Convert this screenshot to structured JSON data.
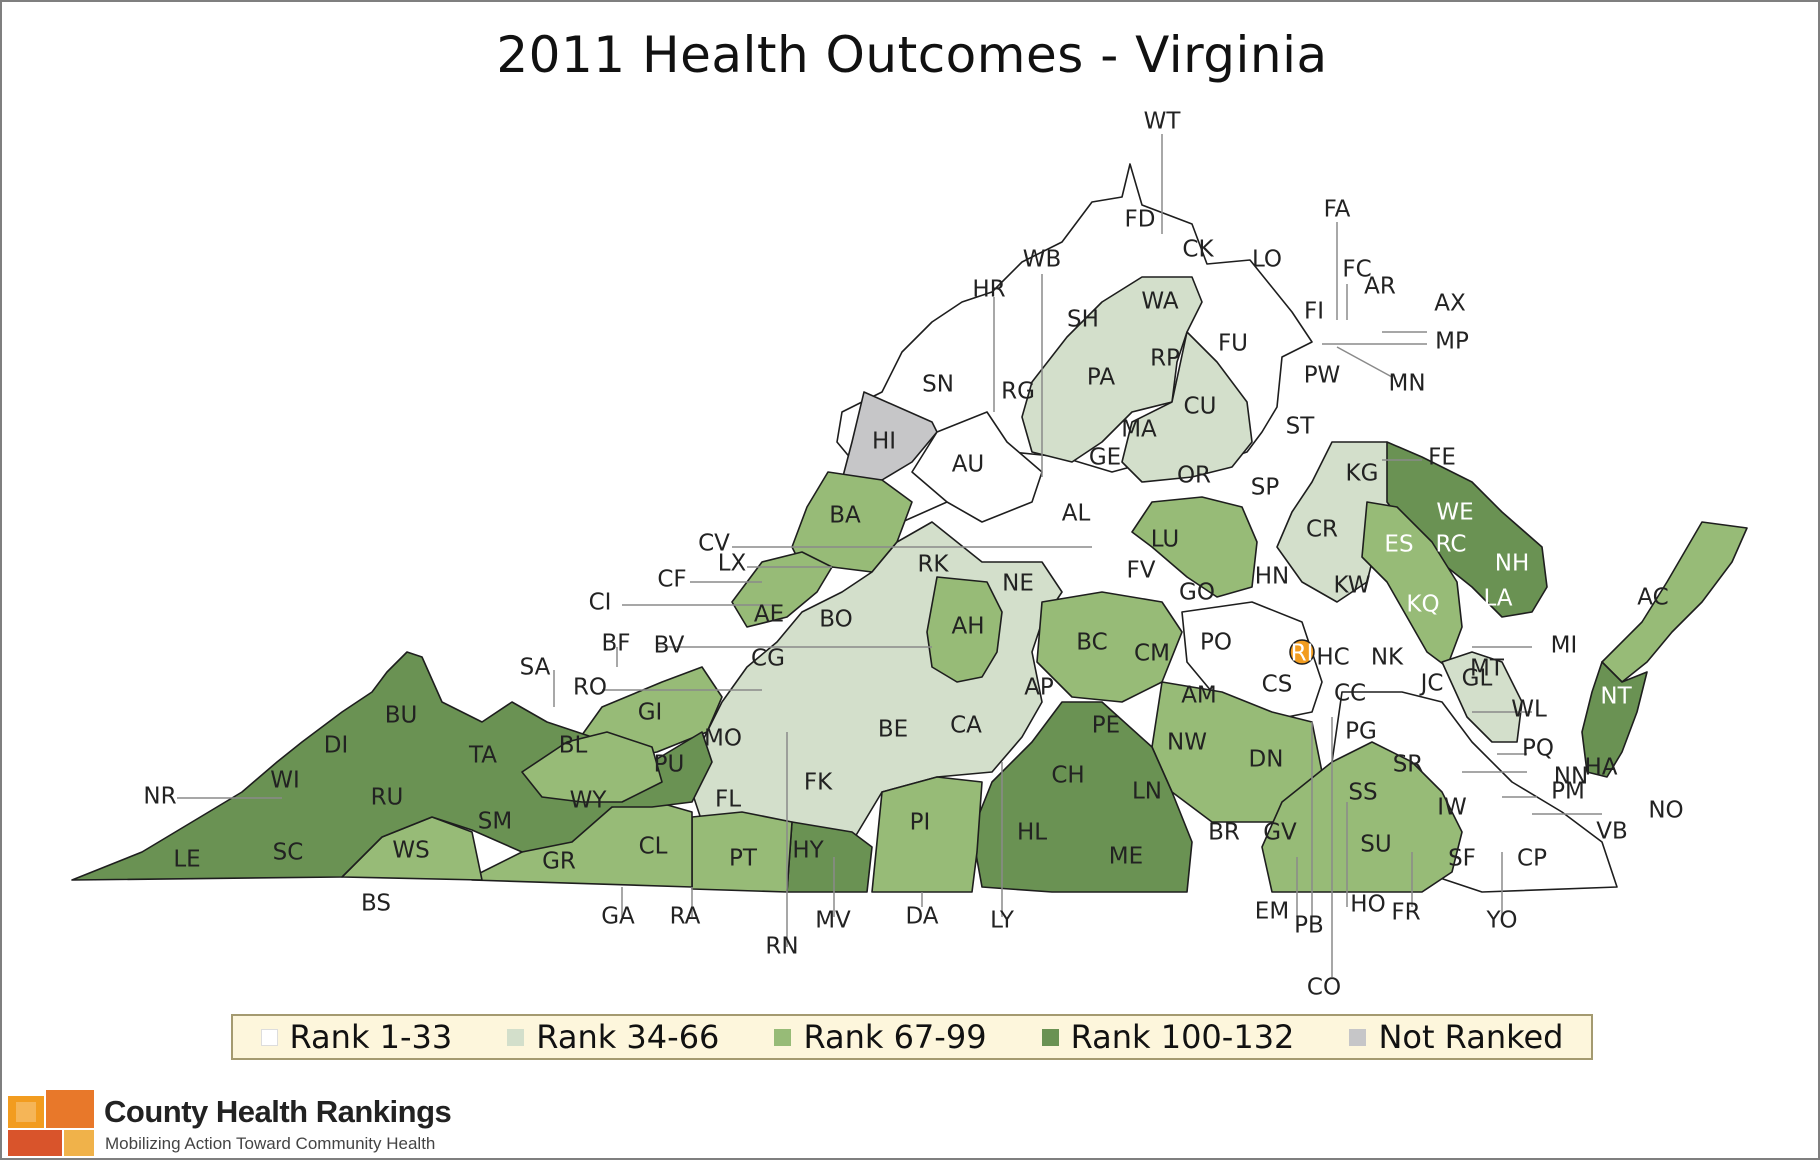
{
  "title": "2011 Health Outcomes - Virginia",
  "legend": [
    {
      "label": "Rank 1-33",
      "color": "#ffffff"
    },
    {
      "label": "Rank 34-66",
      "color": "#d3dfcb"
    },
    {
      "label": "Rank 67-99",
      "color": "#97bb77"
    },
    {
      "label": "Rank 100-132",
      "color": "#6a9253"
    },
    {
      "label": "Not Ranked",
      "color": "#c6c6c8"
    }
  ],
  "highlight_color": "#f29c1f",
  "brand": {
    "name": "County Health Rankings",
    "tagline": "Mobilizing Action Toward Community Health",
    "logo_icon": "county-health-rankings-logo"
  },
  "county_labels": [
    "WT",
    "FD",
    "CK",
    "LO",
    "FA",
    "FC",
    "AR",
    "AX",
    "MP",
    "MN",
    "FI",
    "WB",
    "HR",
    "SH",
    "WA",
    "RP",
    "FU",
    "PA",
    "PW",
    "SN",
    "RG",
    "CU",
    "MA",
    "ST",
    "HI",
    "GE",
    "OR",
    "FE",
    "AU",
    "SP",
    "KG",
    "AL",
    "WE",
    "CV",
    "BA",
    "CR",
    "LU",
    "RC",
    "ES",
    "NH",
    "LX",
    "RK",
    "FV",
    "HN",
    "CF",
    "NE",
    "KW",
    "LA",
    "KQ",
    "CI",
    "GO",
    "AE",
    "BO",
    "MI",
    "BF",
    "BV",
    "AH",
    "BC",
    "CM",
    "PO",
    "RI",
    "HC",
    "NK",
    "SA",
    "CG",
    "MT",
    "AC",
    "CS",
    "JC",
    "GL",
    "RO",
    "AM",
    "AP",
    "CC",
    "GI",
    "WL",
    "NT",
    "BU",
    "DI",
    "MO",
    "BE",
    "CA",
    "PE",
    "PG",
    "PQ",
    "TA",
    "BL",
    "NW",
    "SR",
    "HA",
    "PU",
    "DN",
    "NN",
    "NR",
    "WI",
    "FK",
    "CH",
    "RU",
    "FL",
    "LN",
    "SS",
    "PM",
    "NO",
    "WY",
    "SM",
    "PI",
    "HL",
    "IW",
    "VB",
    "WS",
    "CL",
    "BR",
    "GV",
    "SU",
    "LE",
    "SC",
    "HY",
    "PT",
    "ME",
    "SF",
    "CP",
    "GR",
    "BS",
    "GA",
    "RA",
    "MV",
    "DA",
    "LY",
    "EM",
    "PB",
    "HO",
    "FR",
    "YO",
    "RN",
    "CO"
  ]
}
